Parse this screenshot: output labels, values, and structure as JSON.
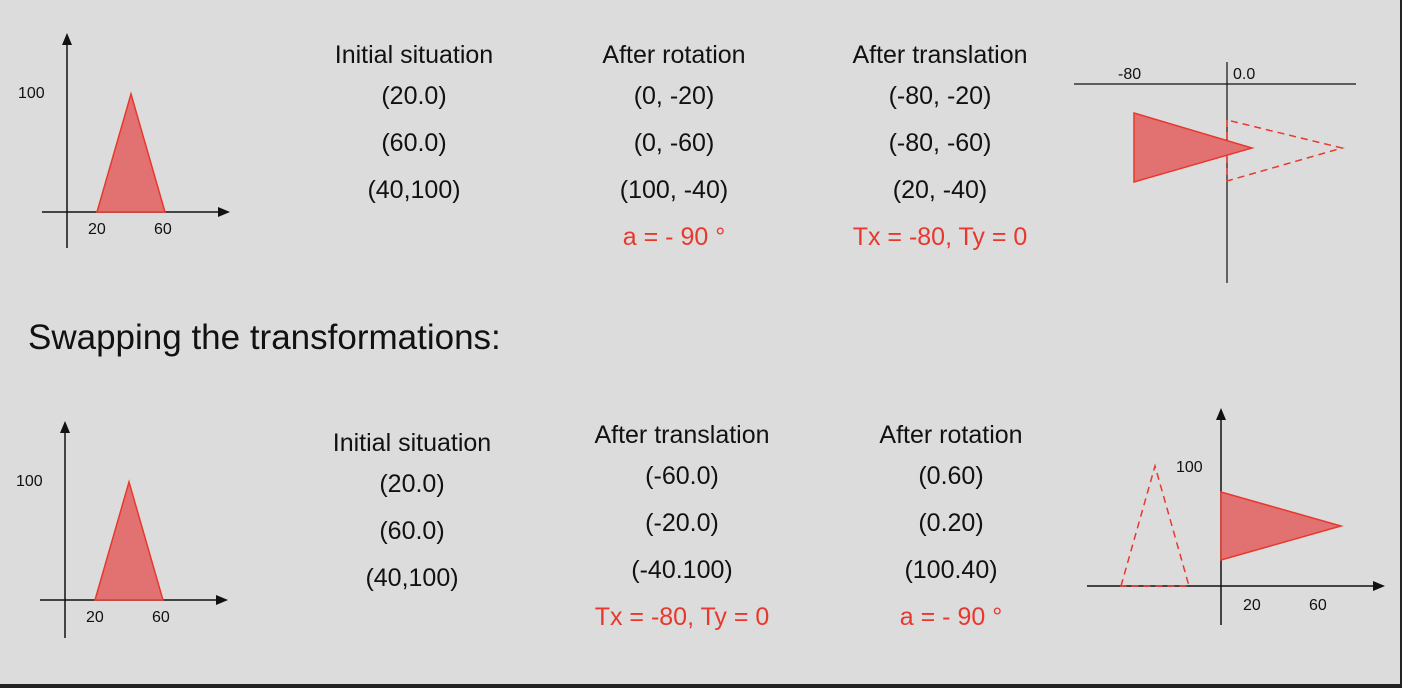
{
  "top": {
    "graph": {
      "y_label": "100",
      "x_labels": [
        "20",
        "60"
      ]
    },
    "columns": [
      {
        "heading": "Initial situation",
        "values": [
          "(20.0)",
          "(60.0)",
          "(40,100)"
        ],
        "note": ""
      },
      {
        "heading": "After rotation",
        "values": [
          "(0, -20)",
          "(0, -60)",
          "(100, -40)"
        ],
        "note": "a = - 90 °"
      },
      {
        "heading": "After translation",
        "values": [
          "(-80, -20)",
          "(-80, -60)",
          "(20, -40)"
        ],
        "note": "Tx = -80, Ty = 0"
      }
    ],
    "result_graph": {
      "labels": [
        "-80",
        "0.0"
      ]
    }
  },
  "swap_title": "Swapping the transformations:",
  "bottom": {
    "graph": {
      "y_label": "100",
      "x_labels": [
        "20",
        "60"
      ]
    },
    "columns": [
      {
        "heading": "Initial situation",
        "values": [
          "(20.0)",
          "(60.0)",
          "(40,100)"
        ],
        "note": ""
      },
      {
        "heading": "After translation",
        "values": [
          "(-60.0)",
          "(-20.0)",
          "(-40.100)"
        ],
        "note": "Tx = -80, Ty = 0"
      },
      {
        "heading": "After rotation",
        "values": [
          "(0.60)",
          "(0.20)",
          "(100.40)"
        ],
        "note": "a = - 90 °"
      }
    ],
    "result_graph": {
      "y_label": "100",
      "x_labels": [
        "20",
        "60"
      ]
    }
  },
  "colors": {
    "shape_fill": "#e27272",
    "shape_stroke": "#e8382d",
    "note_text": "#e8382d",
    "background": "#dcdcdc"
  }
}
